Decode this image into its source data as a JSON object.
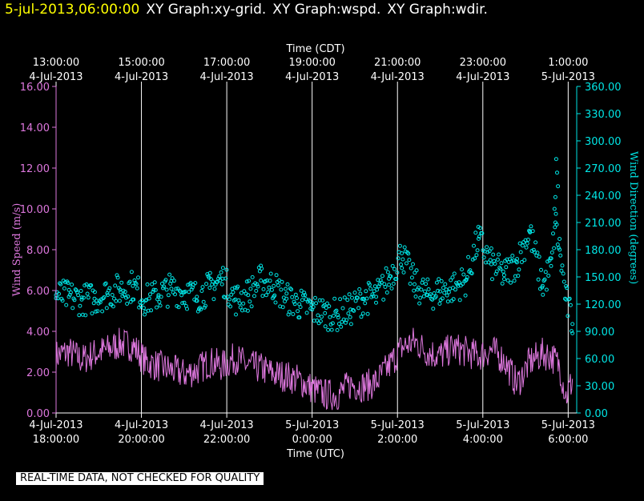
{
  "header": {
    "timestamp": "5-jul-2013,06:00:00",
    "graphs": [
      "XY Graph:xy-grid.",
      "XY Graph:wspd.",
      "XY Graph:wdir."
    ]
  },
  "disclaimer": "REAL-TIME DATA, NOT CHECKED FOR QUALITY",
  "colors": {
    "speed": "#dd77dd",
    "direction": "#00e5e5",
    "grid": "#ffffff",
    "background": "#000000"
  },
  "chart_data": {
    "type": "scatter",
    "title": "Time (CDT)",
    "xlabel": "Time (UTC)",
    "ylabel": "Wind Speed (m/s)",
    "ylabel_right": "Wind Direction (degrees)",
    "xlim_hours_utc": [
      18.0,
      30.2
    ],
    "ylim": [
      0,
      16
    ],
    "ylim_right": [
      0,
      360
    ],
    "top_ticks": [
      {
        "hour": 18,
        "time": "13:00:00",
        "date": "4-Jul-2013"
      },
      {
        "hour": 20,
        "time": "15:00:00",
        "date": "4-Jul-2013"
      },
      {
        "hour": 22,
        "time": "17:00:00",
        "date": "4-Jul-2013"
      },
      {
        "hour": 24,
        "time": "19:00:00",
        "date": "4-Jul-2013"
      },
      {
        "hour": 26,
        "time": "21:00:00",
        "date": "4-Jul-2013"
      },
      {
        "hour": 28,
        "time": "23:00:00",
        "date": "4-Jul-2013"
      },
      {
        "hour": 30,
        "time": "1:00:00",
        "date": "5-Jul-2013"
      }
    ],
    "bottom_ticks": [
      {
        "hour": 18,
        "date": "4-Jul-2013",
        "time": "18:00:00"
      },
      {
        "hour": 20,
        "date": "4-Jul-2013",
        "time": "20:00:00"
      },
      {
        "hour": 22,
        "date": "4-Jul-2013",
        "time": "22:00:00"
      },
      {
        "hour": 24,
        "date": "5-Jul-2013",
        "time": "0:00:00"
      },
      {
        "hour": 26,
        "date": "5-Jul-2013",
        "time": "2:00:00"
      },
      {
        "hour": 28,
        "date": "5-Jul-2013",
        "time": "4:00:00"
      },
      {
        "hour": 30,
        "date": "5-Jul-2013",
        "time": "6:00:00"
      }
    ],
    "left_ticks": [
      "0.00",
      "2.00",
      "4.00",
      "6.00",
      "8.00",
      "10.00",
      "12.00",
      "14.00",
      "16.00"
    ],
    "right_ticks": [
      "0.00",
      "30.00",
      "60.00",
      "90.00",
      "120.00",
      "150.00",
      "180.00",
      "210.00",
      "240.00",
      "270.00",
      "300.00",
      "330.00",
      "360.00"
    ],
    "series": [
      {
        "name": "wspd",
        "style": "line",
        "x": [
          18.0,
          18.3,
          18.6,
          18.9,
          19.2,
          19.5,
          19.8,
          20.1,
          20.4,
          20.7,
          21.0,
          21.3,
          21.6,
          21.9,
          22.2,
          22.5,
          22.8,
          23.1,
          23.4,
          23.7,
          24.0,
          24.3,
          24.6,
          24.9,
          25.2,
          25.5,
          25.8,
          26.1,
          26.4,
          26.7,
          27.0,
          27.3,
          27.6,
          27.9,
          28.2,
          28.5,
          28.8,
          29.1,
          29.4,
          29.6,
          29.8,
          29.95,
          30.1
        ],
        "values": [
          2.8,
          3.0,
          2.6,
          2.9,
          3.1,
          3.4,
          3.3,
          2.5,
          2.3,
          2.1,
          1.9,
          2.1,
          2.5,
          2.3,
          2.7,
          2.3,
          2.2,
          1.9,
          1.8,
          1.6,
          1.2,
          0.9,
          0.9,
          1.4,
          1.3,
          1.5,
          2.3,
          3.2,
          3.5,
          3.0,
          2.8,
          3.2,
          3.0,
          2.8,
          3.1,
          2.6,
          1.4,
          2.5,
          2.9,
          2.8,
          2.3,
          0.8,
          1.6
        ]
      },
      {
        "name": "wdir",
        "style": "points",
        "x": [
          18.0,
          18.3,
          18.6,
          18.9,
          19.2,
          19.5,
          19.8,
          20.1,
          20.4,
          20.7,
          21.0,
          21.3,
          21.6,
          21.9,
          22.2,
          22.5,
          22.8,
          23.1,
          23.4,
          23.7,
          24.0,
          24.3,
          24.6,
          24.9,
          25.2,
          25.5,
          25.8,
          26.1,
          26.4,
          26.7,
          27.0,
          27.3,
          27.6,
          27.9,
          28.2,
          28.5,
          28.8,
          29.1,
          29.4,
          29.6,
          29.7,
          29.8,
          29.95,
          30.1
        ],
        "values": [
          130,
          128,
          125,
          126,
          132,
          136,
          140,
          124,
          130,
          137,
          133,
          128,
          138,
          148,
          125,
          130,
          146,
          140,
          126,
          120,
          114,
          110,
          108,
          114,
          126,
          128,
          148,
          176,
          142,
          130,
          134,
          138,
          146,
          192,
          164,
          152,
          166,
          200,
          140,
          162,
          210,
          180,
          125,
          98
        ]
      }
    ]
  }
}
